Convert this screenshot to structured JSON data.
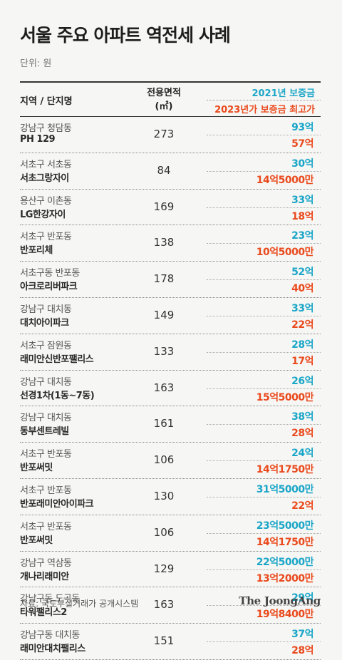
{
  "title": "서울 주요 아파트 역전세 사례",
  "unit": "단위: 원",
  "header": {
    "region": "지역 / 단지명",
    "area_line1": "전용면적",
    "area_line2": "(㎡)",
    "deposit_2021": "2021년 보증금",
    "max_2023": "2023년가 보증금 최고가"
  },
  "colors": {
    "deposit_2021": "#1ba6c8",
    "max_2023": "#ea4a1d"
  },
  "rows": [
    {
      "region": "강남구 청담동",
      "complex": "PH 129",
      "area": "273",
      "deposit_2021": "93억",
      "max_2023": "57억"
    },
    {
      "region": "서초구 서초동",
      "complex": "서초그랑자이",
      "area": "84",
      "deposit_2021": "30억",
      "max_2023": "14억5000만"
    },
    {
      "region": "용산구 이촌동",
      "complex": "LG한강자이",
      "area": "169",
      "deposit_2021": "33억",
      "max_2023": "18억"
    },
    {
      "region": "서초구 반포동",
      "complex": "반포리체",
      "area": "138",
      "deposit_2021": "23억",
      "max_2023": "10억5000만"
    },
    {
      "region": "서초구동 반포동",
      "complex": "아크로리버파크",
      "area": "178",
      "deposit_2021": "52억",
      "max_2023": "40억"
    },
    {
      "region": "강남구 대치동",
      "complex": "대치아이파크",
      "area": "149",
      "deposit_2021": "33억",
      "max_2023": "22억"
    },
    {
      "region": "서초구 잠원동",
      "complex": "래미안신반포팰리스",
      "area": "133",
      "deposit_2021": "28억",
      "max_2023": "17억"
    },
    {
      "region": "강남구 대치동",
      "complex": "선경1차(1동~7동)",
      "area": "163",
      "deposit_2021": "26억",
      "max_2023": "15억5000만"
    },
    {
      "region": "강남구 대치동",
      "complex": "동부센트레빌",
      "area": "161",
      "deposit_2021": "38억",
      "max_2023": "28억"
    },
    {
      "region": "서초구 반포동",
      "complex": "반포써밋",
      "area": "106",
      "deposit_2021": "24억",
      "max_2023": "14억1750만"
    },
    {
      "region": "서초구 반포동",
      "complex": "반포래미안아이파크",
      "area": "130",
      "deposit_2021": "31억5000만",
      "max_2023": "22억"
    },
    {
      "region": "서초구 반포동",
      "complex": "반포써밋",
      "area": "106",
      "deposit_2021": "23억5000만",
      "max_2023": "14억1750만"
    },
    {
      "region": "강남구 역삼동",
      "complex": "개나리래미안",
      "area": "129",
      "deposit_2021": "22억5000만",
      "max_2023": "13억2000만"
    },
    {
      "region": "강남구동 도곡동",
      "complex": "타워팰리스2",
      "area": "163",
      "deposit_2021": "29억",
      "max_2023": "19억8400만"
    },
    {
      "region": "강남구동 대치동",
      "complex": "래미안대치팰리스",
      "area": "151",
      "deposit_2021": "37억",
      "max_2023": "28억"
    }
  ],
  "source": "자료: 국토부실거래가 공개시스템",
  "logo": "The JoongAng"
}
